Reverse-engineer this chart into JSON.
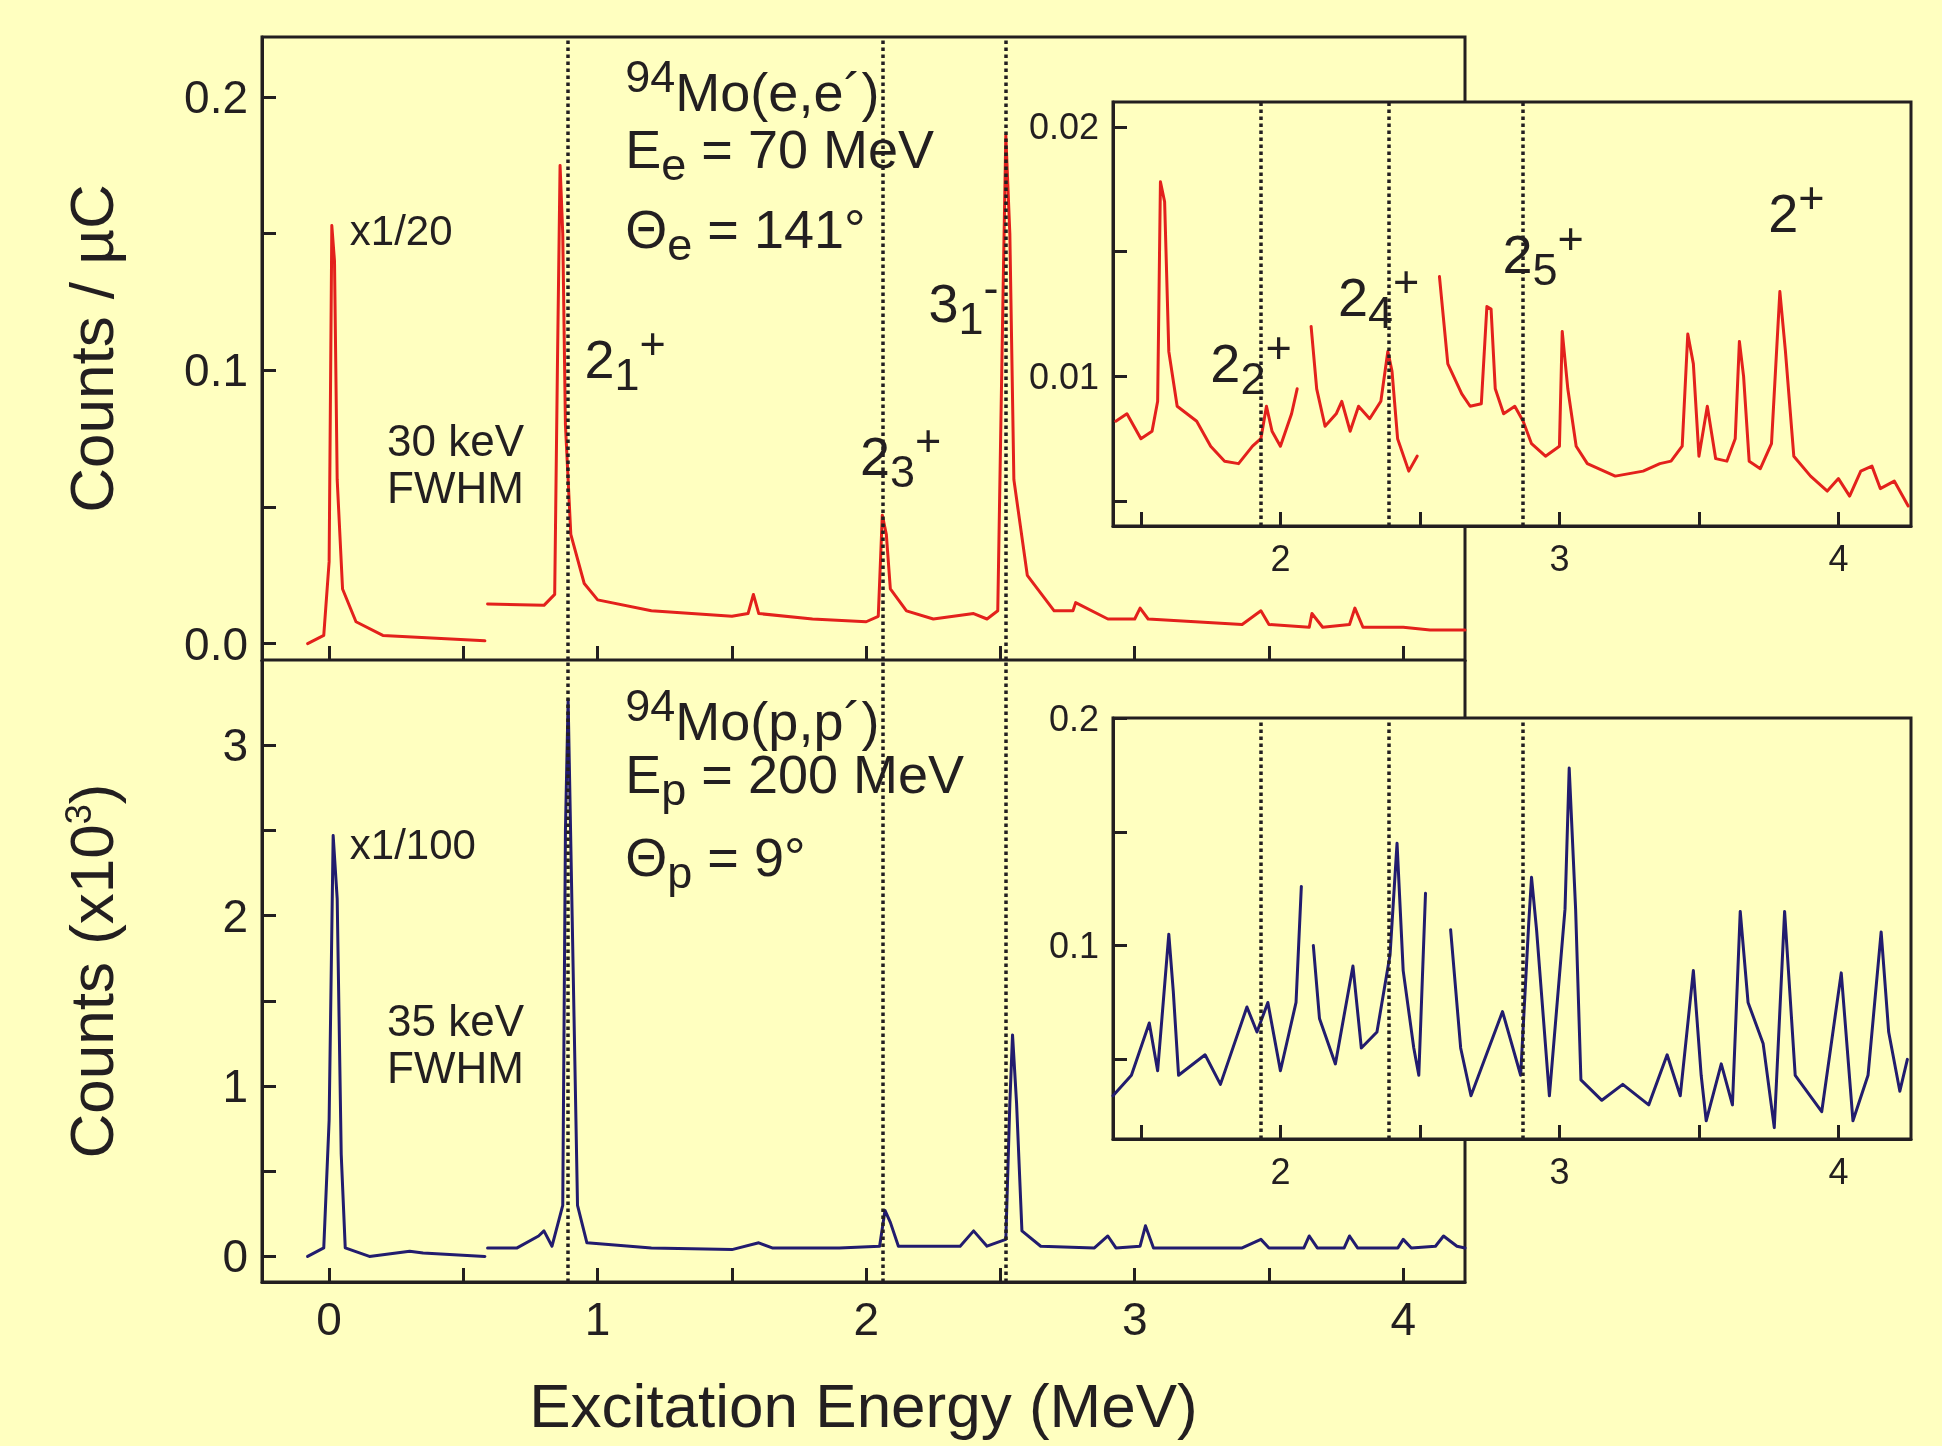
{
  "chart_data": [
    {
      "type": "line",
      "ylabel": "Counts / µC",
      "tick_labels": "y",
      "marker": "none",
      "xlim": [
        -0.25,
        4.23
      ],
      "ylim": [
        -0.006,
        0.222
      ],
      "xticks": [
        0,
        {
          "value": 0.5,
          "label": null
        },
        1,
        {
          "value": 1.5,
          "label": null
        },
        2,
        {
          "value": 2.5,
          "label": null
        },
        3,
        {
          "value": 3.5,
          "label": null
        },
        4
      ],
      "yticks": [
        {
          "value": 0,
          "label": "0.0"
        },
        {
          "value": 0.05,
          "label": null
        },
        0.1,
        {
          "value": 0.15,
          "label": null
        },
        0.2
      ],
      "x": [
        -0.08,
        -0.02,
        0,
        0.01,
        0.02,
        0.03,
        0.05,
        0.1,
        0.2,
        0.58,
        0.585,
        0.59,
        0.8,
        0.84,
        0.85,
        0.86,
        0.87,
        0.88,
        0.9,
        0.95,
        1.0,
        1.2,
        1.5,
        1.56,
        1.58,
        1.6,
        1.8,
        2.0,
        2.045,
        2.06,
        2.075,
        2.09,
        2.15,
        2.25,
        2.4,
        2.45,
        2.49,
        2.51,
        2.52,
        2.535,
        2.55,
        2.6,
        2.7,
        2.77,
        2.78,
        2.9,
        3.0,
        3.02,
        3.05,
        3.4,
        3.47,
        3.5,
        3.65,
        3.66,
        3.7,
        3.8,
        3.82,
        3.85,
        4.0,
        4.1,
        4.23
      ],
      "series": [
        {
          "color": "#e3211c",
          "values": [
            0,
            0.003,
            0.03,
            0.153,
            0.14,
            0.06,
            0.02,
            0.008,
            0.003,
            0.001,
            null,
            0.0145,
            0.014,
            0.018,
            0.1,
            0.175,
            0.15,
            0.08,
            0.04,
            0.022,
            0.016,
            0.012,
            0.01,
            0.011,
            0.018,
            0.011,
            0.009,
            0.008,
            0.01,
            0.047,
            0.04,
            0.02,
            0.012,
            0.009,
            0.011,
            0.009,
            0.012,
            0.13,
            0.186,
            0.15,
            0.06,
            0.025,
            0.012,
            0.012,
            0.015,
            0.009,
            0.009,
            0.013,
            0.009,
            0.007,
            0.012,
            0.007,
            0.006,
            0.011,
            0.006,
            0.007,
            0.013,
            0.006,
            0.006,
            0.005,
            0.005
          ]
        }
      ],
      "ref_lines": [
        {
          "axis": "x",
          "value": 0.89,
          "line_style": "dotted",
          "color": "#231f20"
        },
        {
          "axis": "x",
          "value": 2.065,
          "line_style": "dotted",
          "color": "#231f20"
        },
        {
          "axis": "x",
          "value": 2.52,
          "line_style": "dotted",
          "color": "#231f20"
        }
      ],
      "annotations": [
        "$^{94}$Mo(e,e´)",
        "E$_{e}$ = 70 MeV",
        "Θ$_{e}$ = 141°",
        "x1/20",
        "30 keV\nFWHM",
        "2$_{1}$$^{+}$",
        "2$_{3}$$^{+}$",
        "3$_{1}$$^{-}$"
      ]
    },
    {
      "type": "line",
      "marker": "none",
      "xlim": [
        1.4,
        4.26
      ],
      "ylim": [
        0.004,
        0.021
      ],
      "xticks": [
        {
          "value": 1.5,
          "label": null
        },
        2,
        {
          "value": 2.5,
          "label": null
        },
        3,
        {
          "value": 3.5,
          "label": null
        },
        4
      ],
      "yticks": [
        {
          "value": 0.005,
          "label": null
        },
        0.01,
        {
          "value": 0.015,
          "label": null
        },
        0.02
      ],
      "x": [
        1.41,
        1.45,
        1.5,
        1.54,
        1.56,
        1.57,
        1.585,
        1.6,
        1.63,
        1.7,
        1.75,
        1.8,
        1.85,
        1.9,
        1.93,
        1.95,
        1.97,
        2.0,
        2.04,
        2.06,
        2.075,
        2.1,
        2.11,
        2.13,
        2.16,
        2.2,
        2.22,
        2.25,
        2.28,
        2.32,
        2.36,
        2.385,
        2.4,
        2.42,
        2.46,
        2.49,
        2.5,
        2.56,
        2.57,
        2.6,
        2.65,
        2.68,
        2.72,
        2.74,
        2.755,
        2.77,
        2.8,
        2.84,
        2.87,
        2.9,
        2.95,
        3.0,
        3.01,
        3.03,
        3.06,
        3.1,
        3.2,
        3.3,
        3.36,
        3.4,
        3.44,
        3.46,
        3.48,
        3.5,
        3.53,
        3.56,
        3.6,
        3.63,
        3.645,
        3.66,
        3.68,
        3.72,
        3.76,
        3.79,
        3.81,
        3.84,
        3.9,
        3.96,
        4.0,
        4.04,
        4.08,
        4.12,
        4.15,
        4.2,
        4.25
      ],
      "series": [
        {
          "color": "#e3211c",
          "values": [
            0.0082,
            0.0085,
            0.0075,
            0.0078,
            0.009,
            0.0178,
            0.017,
            0.011,
            0.0088,
            0.0082,
            0.0072,
            0.0066,
            0.0065,
            0.0072,
            0.0075,
            0.0088,
            0.0078,
            0.0072,
            0.0085,
            0.0095,
            null,
            null,
            0.012,
            0.0095,
            0.008,
            0.0085,
            0.009,
            0.0078,
            0.0088,
            0.0083,
            0.009,
            0.011,
            0.0102,
            0.0075,
            0.0062,
            0.0068,
            null,
            null,
            0.014,
            0.0105,
            0.0093,
            0.0088,
            0.0089,
            0.0128,
            0.0127,
            0.0095,
            0.0085,
            0.0088,
            0.0082,
            0.0073,
            0.0068,
            0.0072,
            0.0118,
            0.0095,
            0.0072,
            0.0065,
            0.006,
            0.0062,
            0.0065,
            0.0066,
            0.0072,
            0.0117,
            0.0105,
            0.0068,
            0.0088,
            0.0067,
            0.0066,
            0.0075,
            0.0114,
            0.01,
            0.0066,
            0.0063,
            0.0073,
            0.0134,
            0.011,
            0.0068,
            0.006,
            0.0054,
            0.0059,
            0.0052,
            0.0062,
            0.0064,
            0.0055,
            0.0058,
            0.0048
          ]
        }
      ],
      "ref_lines": [
        {
          "axis": "x",
          "value": 1.93,
          "line_style": "dotted",
          "color": "#231f20"
        },
        {
          "axis": "x",
          "value": 2.39,
          "line_style": "dotted",
          "color": "#231f20"
        },
        {
          "axis": "x",
          "value": 2.87,
          "line_style": "dotted",
          "color": "#231f20"
        }
      ],
      "annotations": [
        "2$_{2}$$^{+}$",
        "2$_{4}$$^{+}$",
        "2$_{5}$$^{+}$",
        "2$^{+}$"
      ]
    },
    {
      "type": "line",
      "xlabel": "Excitation Energy (MeV)",
      "ylabel": "Counts (x10$^{3}$)",
      "marker": "none",
      "xlim": [
        -0.25,
        4.23
      ],
      "ylim": [
        -0.15,
        3.5
      ],
      "xticks": [
        0,
        {
          "value": 0.5,
          "label": null
        },
        1,
        {
          "value": 1.5,
          "label": null
        },
        2,
        {
          "value": 2.5,
          "label": null
        },
        3,
        {
          "value": 3.5,
          "label": null
        },
        4
      ],
      "yticks": [
        0,
        {
          "value": 0.5,
          "label": null
        },
        1,
        {
          "value": 1.5,
          "label": null
        },
        2,
        {
          "value": 2.5,
          "label": null
        },
        3
      ],
      "x": [
        -0.08,
        -0.02,
        0,
        0.015,
        0.03,
        0.045,
        0.06,
        0.15,
        0.3,
        0.35,
        0.58,
        0.585,
        0.59,
        0.7,
        0.78,
        0.8,
        0.83,
        0.87,
        0.88,
        0.89,
        0.905,
        0.925,
        0.96,
        1.2,
        1.5,
        1.6,
        1.65,
        1.9,
        2.05,
        2.07,
        2.09,
        2.12,
        2.35,
        2.4,
        2.45,
        2.52,
        2.535,
        2.545,
        2.56,
        2.58,
        2.65,
        2.85,
        2.9,
        2.93,
        3.02,
        3.04,
        3.07,
        3.4,
        3.47,
        3.5,
        3.63,
        3.65,
        3.68,
        3.78,
        3.8,
        3.83,
        3.98,
        4.0,
        4.03,
        4.12,
        4.15,
        4.2,
        4.23
      ],
      "series": [
        {
          "color": "#221c6e",
          "values": [
            0,
            0.05,
            0.8,
            2.47,
            2.1,
            0.6,
            0.05,
            0,
            0.03,
            0.02,
            0,
            null,
            0.05,
            0.05,
            0.12,
            0.15,
            0.06,
            0.3,
            2.5,
            3.27,
            2.0,
            0.3,
            0.08,
            0.05,
            0.04,
            0.08,
            0.05,
            0.05,
            0.06,
            0.27,
            0.2,
            0.06,
            0.06,
            0.15,
            0.06,
            0.1,
            0.9,
            1.3,
            0.9,
            0.15,
            0.06,
            0.05,
            0.12,
            0.05,
            0.06,
            0.18,
            0.05,
            0.05,
            0.1,
            0.05,
            0.05,
            0.12,
            0.05,
            0.05,
            0.12,
            0.05,
            0.05,
            0.1,
            0.05,
            0.06,
            0.12,
            0.06,
            0.05
          ]
        }
      ],
      "ref_lines": [
        {
          "axis": "x",
          "value": 0.89,
          "line_style": "dotted",
          "color": "#231f20"
        },
        {
          "axis": "x",
          "value": 2.065,
          "line_style": "dotted",
          "color": "#231f20"
        },
        {
          "axis": "x",
          "value": 2.52,
          "line_style": "dotted",
          "color": "#231f20"
        }
      ],
      "annotations": [
        "$^{94}$Mo(p,p´)",
        "E$_{p}$ = 200 MeV",
        "Θ$_{p}$ = 9°",
        "x1/100",
        "35 keV\nFWHM"
      ]
    },
    {
      "type": "line",
      "marker": "none",
      "xlim": [
        1.4,
        4.26
      ],
      "ylim": [
        0.015,
        0.2
      ],
      "xticks": [
        {
          "value": 1.5,
          "label": null
        },
        2,
        {
          "value": 2.5,
          "label": null
        },
        3,
        {
          "value": 3.5,
          "label": null
        },
        4
      ],
      "yticks": [
        {
          "value": 0.05,
          "label": null
        },
        0.1,
        {
          "value": 0.15,
          "label": null
        },
        0.2
      ],
      "x": [
        1.4,
        1.466,
        1.53,
        1.56,
        1.6,
        1.616,
        1.635,
        1.73,
        1.785,
        1.88,
        1.916,
        1.955,
        2.0,
        2.056,
        2.075,
        2.085,
        2.107,
        2.118,
        2.14,
        2.197,
        2.26,
        2.29,
        2.346,
        2.393,
        2.418,
        2.44,
        2.478,
        2.496,
        2.52,
        2.537,
        2.59,
        2.61,
        2.646,
        2.683,
        2.796,
        2.861,
        2.89,
        2.9,
        2.918,
        2.964,
        3.02,
        3.035,
        3.058,
        3.077,
        3.152,
        3.227,
        3.32,
        3.386,
        3.433,
        3.48,
        3.508,
        3.526,
        3.58,
        3.62,
        3.648,
        3.676,
        3.73,
        3.77,
        3.807,
        3.845,
        3.94,
        4.01,
        4.052,
        4.106,
        4.153,
        4.18,
        4.22,
        4.247
      ],
      "series": [
        {
          "color": "#221c6e",
          "values": [
            0.034,
            0.043,
            0.066,
            0.045,
            0.105,
            0.08,
            0.043,
            0.052,
            0.039,
            0.073,
            0.062,
            0.075,
            0.045,
            0.075,
            0.126,
            null,
            null,
            0.1,
            0.068,
            0.048,
            0.091,
            0.055,
            0.062,
            0.096,
            0.145,
            0.089,
            0.055,
            0.043,
            0.123,
            null,
            null,
            0.107,
            0.055,
            0.034,
            0.071,
            0.043,
            0.11,
            0.13,
            0.107,
            0.034,
            0.116,
            0.178,
            0.116,
            0.041,
            0.032,
            0.039,
            0.03,
            0.052,
            0.034,
            0.089,
            0.043,
            0.023,
            0.048,
            0.03,
            0.115,
            0.075,
            0.057,
            0.02,
            0.115,
            0.043,
            0.027,
            0.088,
            0.023,
            0.043,
            0.106,
            0.062,
            0.036,
            0.05
          ]
        }
      ],
      "ref_lines": [
        {
          "axis": "x",
          "value": 1.93,
          "line_style": "dotted",
          "color": "#231f20"
        },
        {
          "axis": "x",
          "value": 2.39,
          "line_style": "dotted",
          "color": "#231f20"
        },
        {
          "axis": "x",
          "value": 2.87,
          "line_style": "dotted",
          "color": "#231f20"
        }
      ]
    }
  ]
}
